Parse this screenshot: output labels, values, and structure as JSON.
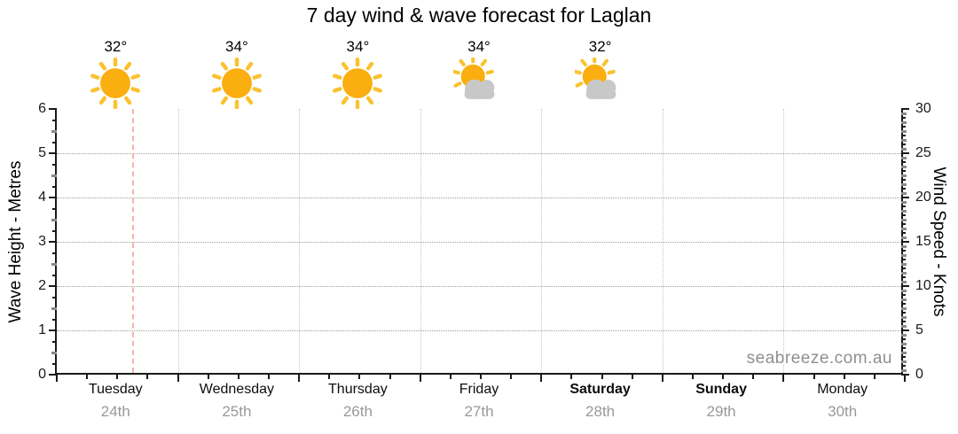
{
  "title": "7 day wind & wave forecast for Laglan",
  "watermark": "seabreeze.com.au",
  "colors": {
    "sun": "#FBAE10",
    "sun_ray": "#FBC22F",
    "cloud": "#C8C8C8",
    "marker": "#F3A79D",
    "grid_horizontal": "#9C9C9C",
    "grid_vertical": "#C6C6C6",
    "axis": "#1A1A1A",
    "muted_text": "#999999",
    "watermark_text": "#8F8F8F"
  },
  "chart_data": {
    "type": "forecast-axes",
    "title": "7 day wind & wave forecast for Laglan",
    "left_axis": {
      "label": "Wave Height - Metres",
      "min": 0,
      "max": 6,
      "major_step": 1,
      "minor_step": 0.25,
      "tick_labels": [
        0,
        1,
        2,
        3,
        4,
        5,
        6
      ],
      "gridlines": [
        1,
        2,
        3,
        4,
        5
      ]
    },
    "right_axis": {
      "label": "Wind Speed - Knots",
      "min": 0,
      "max": 30,
      "major_step": 5,
      "minor_step": 1,
      "tick_labels": [
        0,
        5,
        10,
        15,
        20,
        25,
        30
      ]
    },
    "x_axis": {
      "minor_ticks_per_day": 4,
      "day_boundary_gridlines": true
    },
    "days": [
      {
        "name": "Tuesday",
        "date": "24th",
        "weekend": false,
        "temp_label": "32°",
        "temp_c": 32,
        "sky_icon": "sunny"
      },
      {
        "name": "Wednesday",
        "date": "25th",
        "weekend": false,
        "temp_label": "34°",
        "temp_c": 34,
        "sky_icon": "sunny"
      },
      {
        "name": "Thursday",
        "date": "26th",
        "weekend": false,
        "temp_label": "34°",
        "temp_c": 34,
        "sky_icon": "sunny"
      },
      {
        "name": "Friday",
        "date": "27th",
        "weekend": false,
        "temp_label": "34°",
        "temp_c": 34,
        "sky_icon": "partly-cloudy"
      },
      {
        "name": "Saturday",
        "date": "28th",
        "weekend": true,
        "temp_label": "32°",
        "temp_c": 32,
        "sky_icon": "partly-cloudy"
      },
      {
        "name": "Sunday",
        "date": "29th",
        "weekend": true,
        "temp_label": null,
        "temp_c": null,
        "sky_icon": null
      },
      {
        "name": "Monday",
        "date": "30th",
        "weekend": false,
        "temp_label": null,
        "temp_c": null,
        "sky_icon": null
      }
    ],
    "series": [],
    "current_time_marker": {
      "day_index": 0,
      "time_fraction": 0.62
    }
  }
}
